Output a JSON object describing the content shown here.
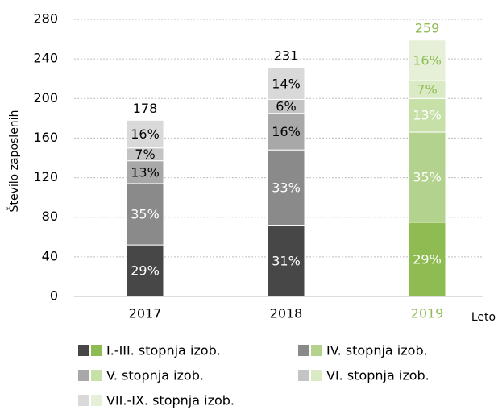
{
  "chart_data": {
    "type": "stacked_bar",
    "ylabel": "Število zaposlenih",
    "xlabel": "Leto",
    "categories": [
      "2017",
      "2018",
      "2019"
    ],
    "highlight": "2019",
    "totals": [
      178,
      231,
      259
    ],
    "ylim": [
      0,
      280
    ],
    "yticks": [
      0,
      40,
      80,
      120,
      160,
      200,
      240,
      280
    ],
    "grid": true,
    "series": [
      {
        "name": "I.-III. stopnja izob.",
        "color": "#474747",
        "highlight_color": "#8fbc52",
        "label_color": "#ffffff",
        "highlight_label_color": "#ffffff",
        "values": [
          52,
          72,
          75
        ],
        "value_labels": [
          "29%",
          "31%",
          "29%"
        ]
      },
      {
        "name": "IV. stopnja izob.",
        "color": "#8a8a8a",
        "highlight_color": "#b3d28e",
        "label_color": "#ffffff",
        "highlight_label_color": "#ffffff",
        "values": [
          62,
          76,
          91
        ],
        "value_labels": [
          "35%",
          "33%",
          "35%"
        ]
      },
      {
        "name": "V. stopnja izob.",
        "color": "#a8a8a8",
        "highlight_color": "#c7e0a8",
        "label_color": "#000000",
        "highlight_label_color": "#ffffff",
        "values": [
          23,
          37,
          34
        ],
        "value_labels": [
          "13%",
          "16%",
          "13%"
        ]
      },
      {
        "name": "VI. stopnja izob.",
        "color": "#c4c4c4",
        "highlight_color": "#d9eac4",
        "label_color": "#000000",
        "highlight_label_color": "#8fbc52",
        "values": [
          13,
          14,
          18
        ],
        "value_labels": [
          "7%",
          "6%",
          "7%"
        ]
      },
      {
        "name": "VII.-IX. stopnja izob.",
        "color": "#d9d9d9",
        "highlight_color": "#e6f0d8",
        "label_color": "#000000",
        "highlight_label_color": "#8fbc52",
        "values": [
          28,
          32,
          41
        ],
        "value_labels": [
          "16%",
          "14%",
          "16%"
        ]
      }
    ]
  }
}
